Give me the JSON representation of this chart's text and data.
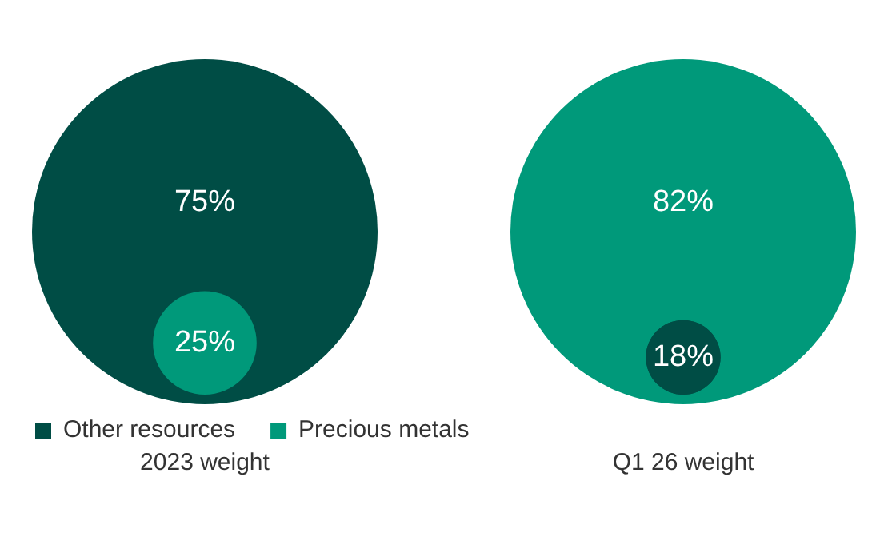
{
  "chart_data": {
    "type": "other",
    "categories": [
      "2023 weight",
      "Q1 26 weight"
    ],
    "legend": "bottom",
    "series": [
      {
        "name": "Other resources",
        "color": "#004d45",
        "values": [
          75,
          18
        ],
        "value_labels": [
          "75%",
          "18%"
        ]
      },
      {
        "name": "Precious metals",
        "color": "#00997a",
        "values": [
          25,
          82
        ],
        "value_labels": [
          "25%",
          "82%"
        ]
      }
    ]
  }
}
